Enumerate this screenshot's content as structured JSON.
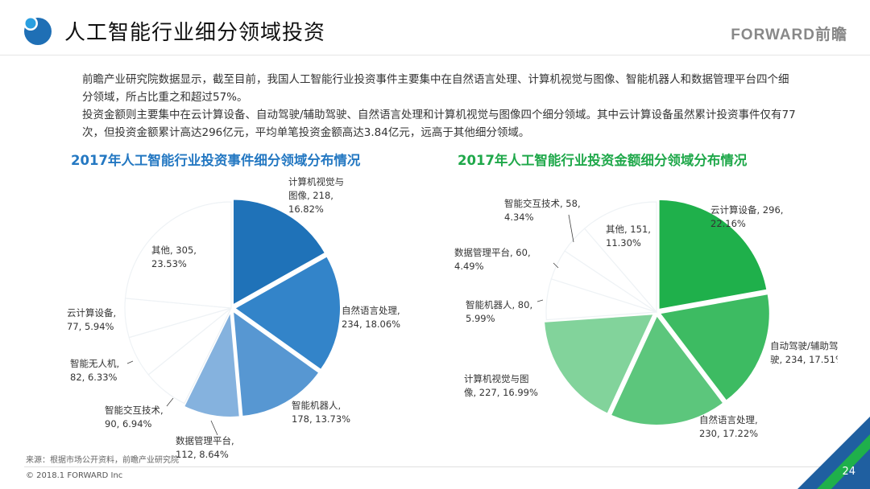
{
  "header": {
    "title": "人工智能行业细分领域投资",
    "brand": "FORWARD前瞻"
  },
  "intro": {
    "paragraph1": "前瞻产业研究院数据显示，截至目前，我国人工智能行业投资事件主要集中在自然语言处理、计算机视觉与图像、智能机器人和数据管理平台四个细分领域，所占比重之和超过57%。",
    "paragraph2": "投资金额则主要集中在云计算设备、自动驾驶/辅助驾驶、自然语言处理和计算机视觉与图像四个细分领域。其中云计算设备虽然累计投资事件仅有77次，但投资金额累计高达296亿元，平均单笔投资金额高达3.84亿元，远高于其他细分领域。"
  },
  "colors": {
    "left_accent": "#1f72b8",
    "right_accent": "#1fb04b",
    "left_title": "#2478c2",
    "right_title": "#1fa84a"
  },
  "chart_data": [
    {
      "type": "pie",
      "title": "2017年人工智能行业投资事件细分领域分布情况",
      "unit": "events",
      "slices": [
        {
          "name": "计算机视觉与图像",
          "value": 218,
          "percent": 16.82,
          "label_lines": [
            "计算机视觉与",
            "图像, 218,",
            "16.82%"
          ],
          "color": "#1f72b8"
        },
        {
          "name": "自然语言处理",
          "value": 234,
          "percent": 18.06,
          "label_lines": [
            "自然语言处理,",
            "234, 18.06%"
          ],
          "color": "#3384c9"
        },
        {
          "name": "智能机器人",
          "value": 178,
          "percent": 13.73,
          "label_lines": [
            "智能机器人,",
            "178, 13.73%"
          ],
          "color": "#5797d2"
        },
        {
          "name": "数据管理平台",
          "value": 112,
          "percent": 8.64,
          "label_lines": [
            "数据管理平台,",
            "112, 8.64%"
          ],
          "color": "#85b2de"
        },
        {
          "name": "智能交互技术",
          "value": 90,
          "percent": 6.94,
          "label_lines": [
            "智能交互技术,",
            "90, 6.94%"
          ],
          "color": "#ffffff"
        },
        {
          "name": "智能无人机",
          "value": 82,
          "percent": 6.33,
          "label_lines": [
            "智能无人机,",
            "82, 6.33%"
          ],
          "color": "#ffffff"
        },
        {
          "name": "云计算设备",
          "value": 77,
          "percent": 5.94,
          "label_lines": [
            "云计算设备,",
            "77, 5.94%"
          ],
          "color": "#ffffff"
        },
        {
          "name": "其他",
          "value": 305,
          "percent": 23.53,
          "label_lines": [
            "其他, 305,",
            "23.53%"
          ],
          "color": "#ffffff"
        }
      ]
    },
    {
      "type": "pie",
      "title": "2017年人工智能行业投资金额细分领域分布情况",
      "unit": "亿元",
      "slices": [
        {
          "name": "云计算设备",
          "value": 296,
          "percent": 22.16,
          "label_lines": [
            "云计算设备, 296,",
            "22.16%"
          ],
          "color": "#1fb04b"
        },
        {
          "name": "自动驾驶/辅助驾驶",
          "value": 234,
          "percent": 17.51,
          "label_lines": [
            "自动驾驶/辅助驾",
            "驶, 234, 17.51%"
          ],
          "color": "#3dbb62"
        },
        {
          "name": "自然语言处理",
          "value": 230,
          "percent": 17.22,
          "label_lines": [
            "自然语言处理,",
            "230, 17.22%"
          ],
          "color": "#5cc67c"
        },
        {
          "name": "计算机视觉与图像",
          "value": 227,
          "percent": 16.99,
          "label_lines": [
            "计算机视觉与图",
            "像, 227, 16.99%"
          ],
          "color": "#82d39b"
        },
        {
          "name": "智能机器人",
          "value": 80,
          "percent": 5.99,
          "label_lines": [
            "智能机器人, 80,",
            "5.99%"
          ],
          "color": "#ffffff"
        },
        {
          "name": "数据管理平台",
          "value": 60,
          "percent": 4.49,
          "label_lines": [
            "数据管理平台, 60,",
            "4.49%"
          ],
          "color": "#ffffff"
        },
        {
          "name": "智能交互技术",
          "value": 58,
          "percent": 4.34,
          "label_lines": [
            "智能交互技术, 58,",
            "4.34%"
          ],
          "color": "#ffffff"
        },
        {
          "name": "其他",
          "value": 151,
          "percent": 11.3,
          "label_lines": [
            "其他, 151,",
            "11.30%"
          ],
          "color": "#ffffff"
        }
      ]
    }
  ],
  "footer": {
    "source": "来源：根据市场公开资料，前瞻产业研究院",
    "copyright": "© 2018.1 FORWARD Inc",
    "page_number": "24"
  }
}
